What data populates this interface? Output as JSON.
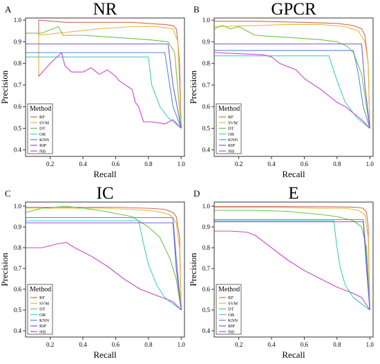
{
  "legend": {
    "title": "Method",
    "items": [
      {
        "name": "RF",
        "color": "#d0695a"
      },
      {
        "name": "SVM",
        "color": "#e8b73a"
      },
      {
        "name": "DT",
        "color": "#6fc24a"
      },
      {
        "name": "OR",
        "color": "#3fcfc0"
      },
      {
        "name": "KNN",
        "color": "#5a86d6"
      },
      {
        "name": "RIP",
        "color": "#7a5ad0"
      },
      {
        "name": "NB",
        "color": "#cc44cc"
      }
    ]
  },
  "chart_data": [
    {
      "type": "line",
      "panel_label": "A",
      "title": "NR",
      "xlabel": "Recall",
      "ylabel": "Precision",
      "xlim": [
        0.05,
        1.02
      ],
      "ylim": [
        0.37,
        1.01
      ],
      "xticks": [
        0.2,
        0.4,
        0.6,
        0.8,
        1.0
      ],
      "xtick_labels": [
        "0.2",
        "0.4",
        "0.6",
        "0.8",
        "1.0"
      ],
      "yticks": [
        0.4,
        0.5,
        0.6,
        0.7,
        0.8,
        0.9,
        1.0
      ],
      "ytick_labels": [
        "0.4",
        "0.5",
        "0.6",
        "0.7",
        "0.8",
        "0.9",
        "1.0"
      ],
      "grid": false,
      "legend_position": "bottom-left",
      "series": [
        {
          "name": "RF",
          "x": [
            0.13,
            0.13,
            0.3,
            0.7,
            0.9,
            0.95,
            0.97,
            0.98,
            0.99,
            1.0
          ],
          "y": [
            0.74,
            1.0,
            0.99,
            0.99,
            0.98,
            0.975,
            0.96,
            0.9,
            0.8,
            0.5
          ]
        },
        {
          "name": "SVM",
          "x": [
            0.13,
            0.13,
            0.25,
            0.5,
            0.7,
            0.85,
            0.95,
            0.98,
            1.0
          ],
          "y": [
            0.75,
            0.93,
            0.94,
            0.96,
            0.97,
            0.97,
            0.96,
            0.9,
            0.5
          ]
        },
        {
          "name": "DT",
          "x": [
            0.05,
            0.15,
            0.25,
            0.28,
            0.4,
            0.6,
            0.8,
            0.92,
            0.96,
            1.0
          ],
          "y": [
            0.94,
            0.94,
            0.97,
            0.93,
            0.93,
            0.92,
            0.91,
            0.9,
            0.85,
            0.5
          ]
        },
        {
          "name": "OR",
          "x": [
            0.05,
            0.5,
            0.8,
            0.82,
            0.87,
            0.92,
            1.0
          ],
          "y": [
            0.83,
            0.83,
            0.83,
            0.7,
            0.6,
            0.55,
            0.5
          ]
        },
        {
          "name": "KNN",
          "x": [
            0.05,
            0.6,
            0.9,
            0.92,
            0.95,
            1.0
          ],
          "y": [
            0.85,
            0.85,
            0.85,
            0.75,
            0.6,
            0.5
          ]
        },
        {
          "name": "RIP",
          "x": [
            0.05,
            0.6,
            0.92,
            0.95,
            1.0
          ],
          "y": [
            0.89,
            0.89,
            0.89,
            0.7,
            0.5
          ]
        },
        {
          "name": "NB",
          "x": [
            0.13,
            0.2,
            0.27,
            0.29,
            0.33,
            0.4,
            0.45,
            0.5,
            0.55,
            0.6,
            0.62,
            0.66,
            0.7,
            0.72,
            0.74,
            0.77,
            0.82,
            0.9,
            0.95,
            1.0
          ],
          "y": [
            0.74,
            0.8,
            0.85,
            0.79,
            0.76,
            0.76,
            0.78,
            0.75,
            0.77,
            0.74,
            0.72,
            0.7,
            0.68,
            0.62,
            0.6,
            0.53,
            0.53,
            0.52,
            0.54,
            0.5
          ]
        }
      ]
    },
    {
      "type": "line",
      "panel_label": "B",
      "title": "GPCR",
      "xlabel": "Recall",
      "ylabel": "Precision",
      "xlim": [
        0.05,
        1.02
      ],
      "ylim": [
        0.37,
        1.01
      ],
      "xticks": [
        0.2,
        0.4,
        0.6,
        0.8,
        1.0
      ],
      "xtick_labels": [
        "0.2",
        "0.4",
        "0.6",
        "0.8",
        "1.0"
      ],
      "yticks": [
        0.4,
        0.5,
        0.6,
        0.7,
        0.8,
        0.9,
        1.0
      ],
      "ytick_labels": [
        "0.4",
        "0.5",
        "0.6",
        "0.7",
        "0.8",
        "0.9",
        "1.0"
      ],
      "grid": false,
      "legend_position": "bottom-left",
      "series": [
        {
          "name": "RF",
          "x": [
            0.05,
            0.3,
            0.6,
            0.8,
            0.9,
            0.95,
            0.97,
            0.99,
            1.0
          ],
          "y": [
            0.995,
            0.995,
            0.99,
            0.985,
            0.975,
            0.96,
            0.93,
            0.8,
            0.5
          ]
        },
        {
          "name": "SVM",
          "x": [
            0.05,
            0.3,
            0.5,
            0.7,
            0.85,
            0.93,
            0.97,
            0.99,
            1.0
          ],
          "y": [
            0.97,
            0.975,
            0.98,
            0.98,
            0.97,
            0.95,
            0.9,
            0.8,
            0.5
          ]
        },
        {
          "name": "DT",
          "x": [
            0.05,
            0.1,
            0.15,
            0.2,
            0.3,
            0.5,
            0.7,
            0.8,
            0.86,
            0.9,
            0.95,
            1.0
          ],
          "y": [
            0.96,
            0.975,
            0.96,
            0.97,
            0.93,
            0.92,
            0.91,
            0.9,
            0.88,
            0.85,
            0.75,
            0.5
          ]
        },
        {
          "name": "OR",
          "x": [
            0.05,
            0.5,
            0.75,
            0.8,
            0.85,
            0.92,
            1.0
          ],
          "y": [
            0.835,
            0.835,
            0.835,
            0.72,
            0.62,
            0.55,
            0.5
          ]
        },
        {
          "name": "KNN",
          "x": [
            0.05,
            0.6,
            0.9,
            0.93,
            0.96,
            1.0
          ],
          "y": [
            0.86,
            0.86,
            0.86,
            0.75,
            0.6,
            0.5
          ]
        },
        {
          "name": "RIP",
          "x": [
            0.05,
            0.6,
            0.95,
            0.97,
            1.0
          ],
          "y": [
            0.89,
            0.89,
            0.89,
            0.7,
            0.5
          ]
        },
        {
          "name": "NB",
          "x": [
            0.05,
            0.2,
            0.35,
            0.4,
            0.45,
            0.55,
            0.6,
            0.7,
            0.8,
            0.85,
            0.9,
            0.95,
            1.0
          ],
          "y": [
            0.85,
            0.845,
            0.84,
            0.83,
            0.8,
            0.77,
            0.73,
            0.68,
            0.62,
            0.6,
            0.57,
            0.54,
            0.5
          ]
        }
      ]
    },
    {
      "type": "line",
      "panel_label": "C",
      "title": "IC",
      "xlabel": "Recall",
      "ylabel": "Precision",
      "xlim": [
        0.05,
        1.02
      ],
      "ylim": [
        0.37,
        1.02
      ],
      "xticks": [
        0.2,
        0.4,
        0.6,
        0.8,
        1.0
      ],
      "xtick_labels": [
        "0.2",
        "0.4",
        "0.6",
        "0.8",
        "1.0"
      ],
      "yticks": [
        0.4,
        0.5,
        0.6,
        0.7,
        0.8,
        0.9,
        1.0
      ],
      "ytick_labels": [
        "0.4",
        "0.5",
        "0.6",
        "0.7",
        "0.8",
        "0.9",
        "1.0"
      ],
      "grid": false,
      "legend_position": "bottom-left",
      "series": [
        {
          "name": "RF",
          "x": [
            0.05,
            0.3,
            0.6,
            0.8,
            0.9,
            0.95,
            0.97,
            0.99,
            1.0
          ],
          "y": [
            0.995,
            0.995,
            0.995,
            0.99,
            0.985,
            0.97,
            0.95,
            0.85,
            0.5
          ]
        },
        {
          "name": "SVM",
          "x": [
            0.05,
            0.3,
            0.5,
            0.7,
            0.85,
            0.93,
            0.97,
            0.99,
            1.0
          ],
          "y": [
            0.99,
            0.99,
            0.99,
            0.985,
            0.975,
            0.96,
            0.92,
            0.8,
            0.5
          ]
        },
        {
          "name": "DT",
          "x": [
            0.05,
            0.15,
            0.3,
            0.5,
            0.7,
            0.8,
            0.87,
            0.93,
            0.97,
            1.0
          ],
          "y": [
            0.97,
            0.99,
            1.0,
            0.98,
            0.95,
            0.9,
            0.85,
            0.75,
            0.65,
            0.5
          ]
        },
        {
          "name": "OR",
          "x": [
            0.05,
            0.5,
            0.74,
            0.77,
            0.8,
            0.85,
            0.9,
            0.95,
            1.0
          ],
          "y": [
            0.93,
            0.93,
            0.93,
            0.82,
            0.72,
            0.62,
            0.56,
            0.53,
            0.5
          ]
        },
        {
          "name": "KNN",
          "x": [
            0.05,
            0.6,
            0.95,
            0.97,
            1.0
          ],
          "y": [
            0.945,
            0.945,
            0.945,
            0.75,
            0.5
          ]
        },
        {
          "name": "RIP",
          "x": [
            0.05,
            0.6,
            0.95,
            0.97,
            1.0
          ],
          "y": [
            0.92,
            0.92,
            0.92,
            0.7,
            0.5
          ]
        },
        {
          "name": "NB",
          "x": [
            0.05,
            0.15,
            0.25,
            0.3,
            0.35,
            0.45,
            0.55,
            0.65,
            0.75,
            0.85,
            0.95,
            1.0
          ],
          "y": [
            0.8,
            0.8,
            0.82,
            0.825,
            0.8,
            0.76,
            0.71,
            0.65,
            0.6,
            0.57,
            0.54,
            0.5
          ]
        }
      ]
    },
    {
      "type": "line",
      "panel_label": "D",
      "title": "E",
      "xlabel": "Recall",
      "ylabel": "Precision",
      "xlim": [
        0.05,
        1.02
      ],
      "ylim": [
        0.37,
        1.02
      ],
      "xticks": [
        0.2,
        0.4,
        0.6,
        0.8,
        1.0
      ],
      "xtick_labels": [
        "0.2",
        "0.4",
        "0.6",
        "0.8",
        "1.0"
      ],
      "yticks": [
        0.4,
        0.5,
        0.6,
        0.7,
        0.8,
        0.9,
        1.0
      ],
      "ytick_labels": [
        "0.4",
        "0.5",
        "0.6",
        "0.7",
        "0.8",
        "0.9",
        "1.0"
      ],
      "grid": false,
      "legend_position": "bottom-left",
      "series": [
        {
          "name": "RF",
          "x": [
            0.05,
            0.4,
            0.8,
            0.92,
            0.96,
            0.98,
            0.99,
            1.0
          ],
          "y": [
            0.998,
            0.998,
            0.997,
            0.995,
            0.99,
            0.97,
            0.9,
            0.5
          ]
        },
        {
          "name": "SVM",
          "x": [
            0.05,
            0.4,
            0.7,
            0.85,
            0.93,
            0.97,
            0.99,
            1.0
          ],
          "y": [
            0.995,
            0.995,
            0.99,
            0.99,
            0.98,
            0.96,
            0.85,
            0.5
          ]
        },
        {
          "name": "DT",
          "x": [
            0.05,
            0.3,
            0.5,
            0.7,
            0.8,
            0.9,
            0.95,
            0.98,
            1.0
          ],
          "y": [
            0.98,
            0.98,
            0.975,
            0.96,
            0.95,
            0.93,
            0.9,
            0.8,
            0.5
          ]
        },
        {
          "name": "OR",
          "x": [
            0.05,
            0.5,
            0.78,
            0.8,
            0.82,
            0.85,
            0.9,
            0.95,
            1.0
          ],
          "y": [
            0.93,
            0.93,
            0.93,
            0.8,
            0.7,
            0.62,
            0.56,
            0.53,
            0.5
          ]
        },
        {
          "name": "KNN",
          "x": [
            0.05,
            0.6,
            0.96,
            0.98,
            1.0
          ],
          "y": [
            0.935,
            0.935,
            0.935,
            0.75,
            0.5
          ]
        },
        {
          "name": "RIP",
          "x": [
            0.05,
            0.6,
            0.96,
            0.98,
            1.0
          ],
          "y": [
            0.925,
            0.925,
            0.925,
            0.7,
            0.5
          ]
        },
        {
          "name": "NB",
          "x": [
            0.05,
            0.15,
            0.25,
            0.3,
            0.4,
            0.5,
            0.6,
            0.7,
            0.8,
            0.9,
            0.95,
            1.0
          ],
          "y": [
            0.88,
            0.88,
            0.875,
            0.86,
            0.8,
            0.74,
            0.69,
            0.65,
            0.61,
            0.58,
            0.56,
            0.5
          ]
        }
      ]
    }
  ]
}
